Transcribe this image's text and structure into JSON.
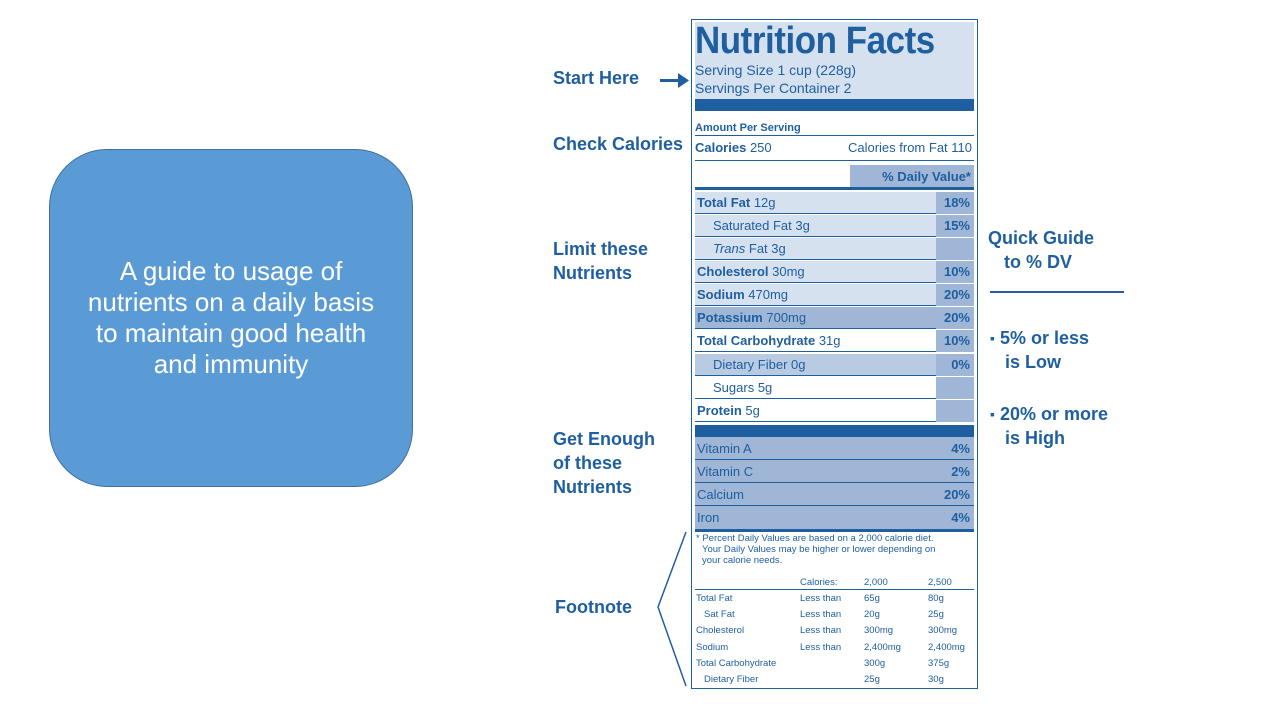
{
  "callout": {
    "text": "A guide to usage of nutrients on a daily basis to maintain good health and immunity"
  },
  "side_labels": {
    "start_here": "Start Here",
    "check_calories": "Check Calories",
    "limit_line1": "Limit these",
    "limit_line2": "Nutrients",
    "get_line1": "Get Enough",
    "get_line2": "of these",
    "get_line3": "Nutrients",
    "footnote": "Footnote"
  },
  "quick_guide": {
    "title_line1": "Quick Guide",
    "title_line2": "to % DV",
    "low_line1": "5% or less",
    "low_line2": "is Low",
    "high_line1": "20% or more",
    "high_line2": "is High"
  },
  "label": {
    "title": "Nutrition Facts",
    "serving_size": "Serving Size 1 cup (228g)",
    "servings_per_container": "Servings Per Container  2",
    "amount_per_serving": "Amount Per Serving",
    "calories_label": "Calories",
    "calories_value": "250",
    "calories_from_fat": "Calories from Fat 110",
    "daily_value_header": "% Daily Value*",
    "nutrients": [
      {
        "name": "Total Fat",
        "amount": "12g",
        "dv": "18%"
      },
      {
        "name": "Saturated Fat",
        "amount": "3g",
        "dv": "15%"
      },
      {
        "name": "Trans",
        "amount": "Fat 3g",
        "dv": ""
      },
      {
        "name": "Cholesterol",
        "amount": "30mg",
        "dv": "10%"
      },
      {
        "name": "Sodium",
        "amount": "470mg",
        "dv": "20%"
      },
      {
        "name": "Potassium",
        "amount": "700mg",
        "dv": "20%"
      },
      {
        "name": "Total Carbohydrate",
        "amount": "31g",
        "dv": "10%"
      },
      {
        "name": "Dietary Fiber",
        "amount": "0g",
        "dv": "0%"
      },
      {
        "name": "Sugars",
        "amount": "5g",
        "dv": ""
      },
      {
        "name": "Protein",
        "amount": "5g",
        "dv": ""
      }
    ],
    "vitamins": [
      {
        "name": "Vitamin A",
        "dv": "4%"
      },
      {
        "name": "Vitamin C",
        "dv": "2%"
      },
      {
        "name": "Calcium",
        "dv": "20%"
      },
      {
        "name": "Iron",
        "dv": "4%"
      }
    ],
    "footnote_text": [
      "* Percent Daily Values are based on a 2,000 calorie diet.",
      "Your Daily Values may be higher or lower depending on",
      "your calorie needs."
    ],
    "footnote_table": {
      "header": [
        "Calories:",
        "2,000",
        "2,500"
      ],
      "rows": [
        [
          "Total Fat",
          "Less than",
          "65g",
          "80g"
        ],
        [
          "Sat Fat",
          "Less than",
          "20g",
          "25g"
        ],
        [
          "Cholesterol",
          "Less than",
          "300mg",
          "300mg"
        ],
        [
          "Sodium",
          "Less than",
          "2,400mg",
          "2,400mg"
        ],
        [
          "Total Carbohydrate",
          "",
          "300g",
          "375g"
        ],
        [
          "Dietary Fiber",
          "",
          "25g",
          "30g"
        ]
      ]
    }
  }
}
